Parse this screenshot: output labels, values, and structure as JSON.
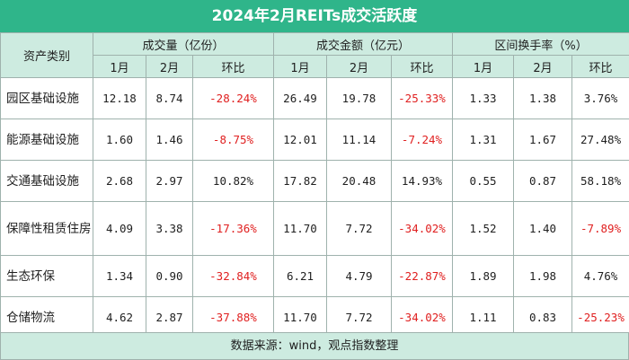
{
  "title": "2024年2月REITs成交活跃度",
  "header": {
    "category_label": "资产类别",
    "groups": [
      "成交量（亿份）",
      "成交金额（亿元）",
      "区间换手率（%）"
    ],
    "sub": [
      "1月",
      "2月",
      "环比"
    ]
  },
  "rows": [
    {
      "category": "园区基础设施",
      "vol_jan": "12.18",
      "vol_feb": "8.74",
      "vol_mom": "-28.24%",
      "amt_jan": "26.49",
      "amt_feb": "19.78",
      "amt_mom": "-25.33%",
      "turn_jan": "1.33",
      "turn_feb": "1.38",
      "turn_mom": "3.76%"
    },
    {
      "category": "能源基础设施",
      "vol_jan": "1.60",
      "vol_feb": "1.46",
      "vol_mom": "-8.75%",
      "amt_jan": "12.01",
      "amt_feb": "11.14",
      "amt_mom": "-7.24%",
      "turn_jan": "1.31",
      "turn_feb": "1.67",
      "turn_mom": "27.48%"
    },
    {
      "category": "交通基础设施",
      "vol_jan": "2.68",
      "vol_feb": "2.97",
      "vol_mom": "10.82%",
      "amt_jan": "17.82",
      "amt_feb": "20.48",
      "amt_mom": "14.93%",
      "turn_jan": "0.55",
      "turn_feb": "0.87",
      "turn_mom": "58.18%"
    },
    {
      "category": "保障性租赁住房",
      "vol_jan": "4.09",
      "vol_feb": "3.38",
      "vol_mom": "-17.36%",
      "amt_jan": "11.70",
      "amt_feb": "7.72",
      "amt_mom": "-34.02%",
      "turn_jan": "1.52",
      "turn_feb": "1.40",
      "turn_mom": "-7.89%"
    },
    {
      "category": "生态环保",
      "vol_jan": "1.34",
      "vol_feb": "0.90",
      "vol_mom": "-32.84%",
      "amt_jan": "6.21",
      "amt_feb": "4.79",
      "amt_mom": "-22.87%",
      "turn_jan": "1.89",
      "turn_feb": "1.98",
      "turn_mom": "4.76%"
    },
    {
      "category": "仓储物流",
      "vol_jan": "4.62",
      "vol_feb": "2.87",
      "vol_mom": "-37.88%",
      "amt_jan": "11.70",
      "amt_feb": "7.72",
      "amt_mom": "-34.02%",
      "turn_jan": "1.11",
      "turn_feb": "0.83",
      "turn_mom": "-25.23%"
    }
  ],
  "colors": {
    "title_bg": "#2fb58a",
    "header_bg": "#cdebe0",
    "negative": "#e02020",
    "border": "#9fb2ad"
  },
  "footer": "数据来源：wind，观点指数整理"
}
